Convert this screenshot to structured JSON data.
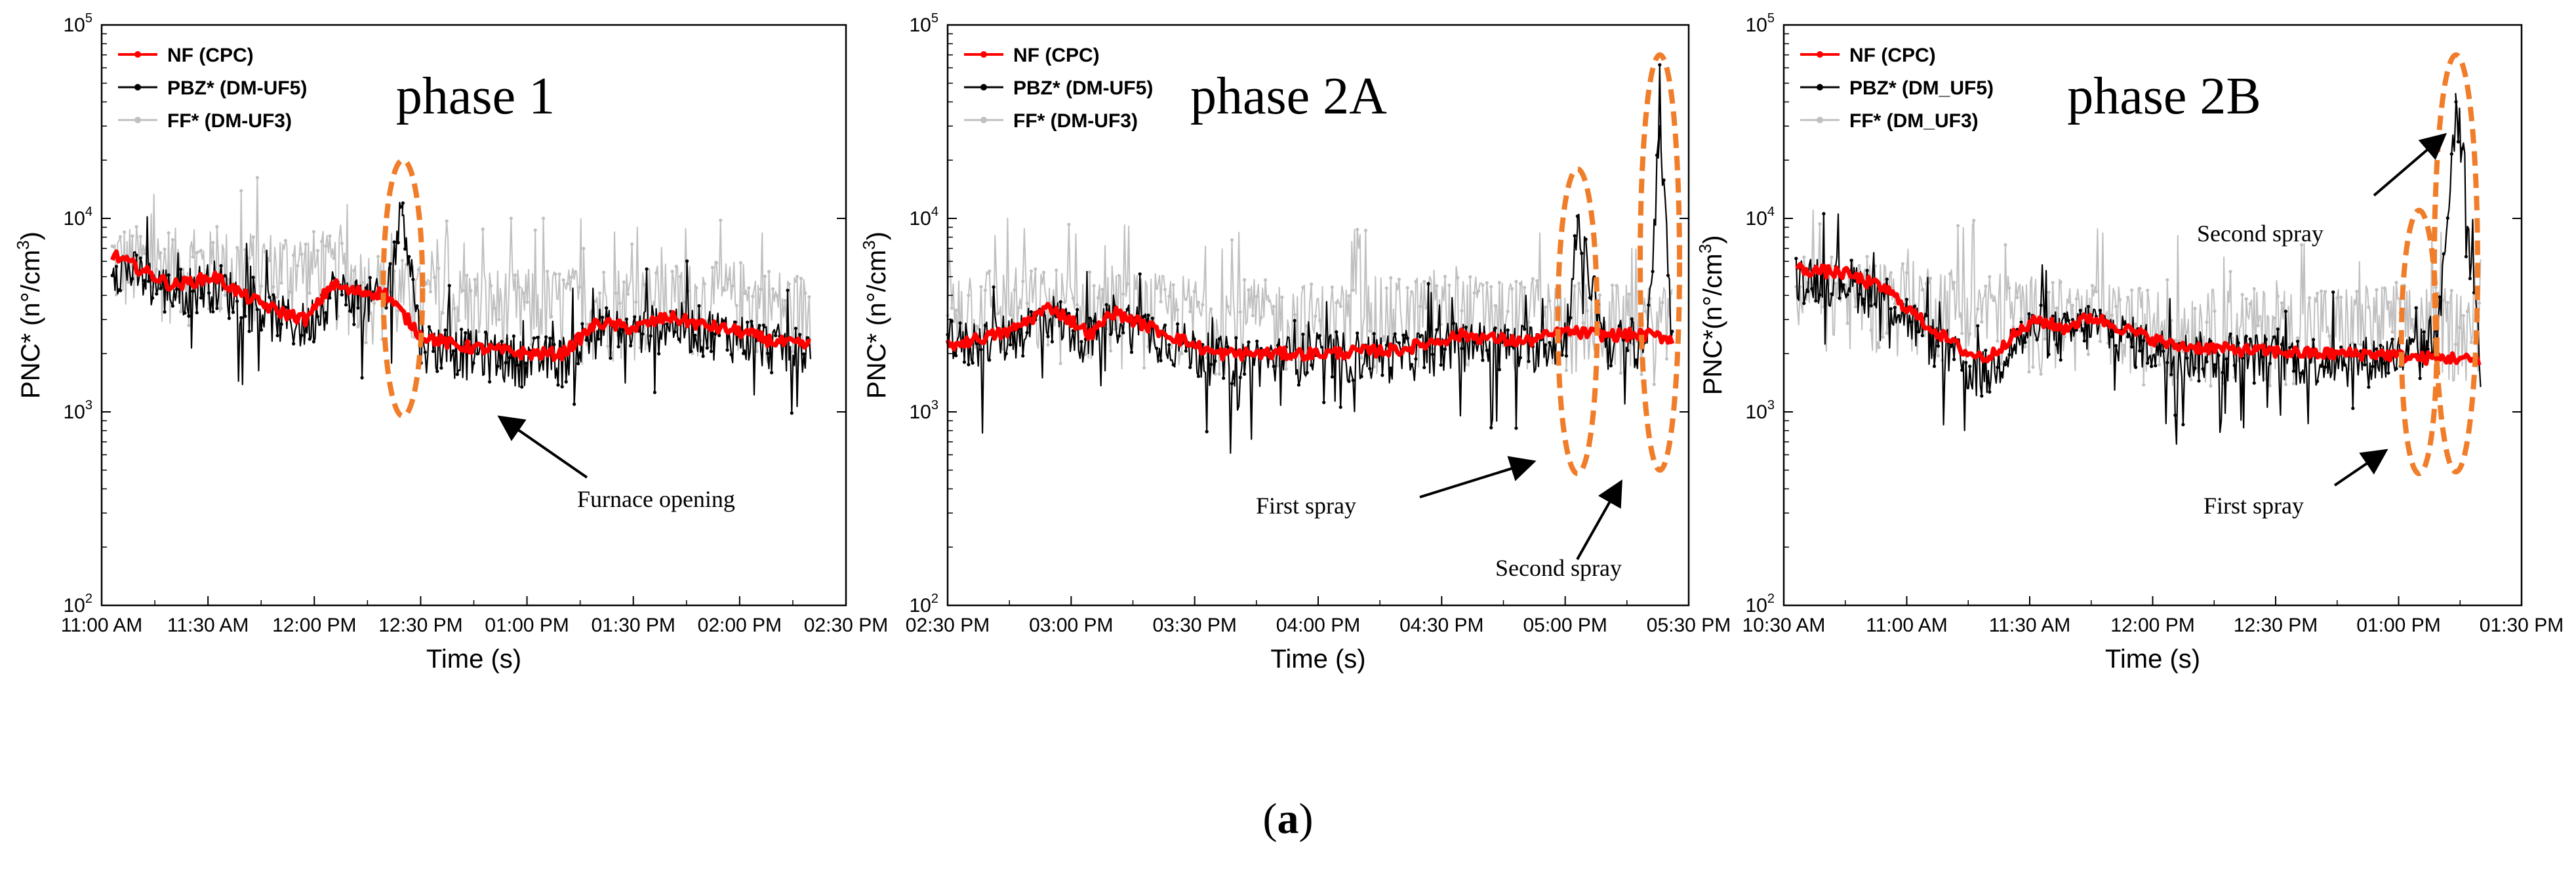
{
  "figure_caption": {
    "open": "(",
    "letter": "a",
    "close": ")"
  },
  "colors": {
    "nf": "#ff0000",
    "pbz": "#000000",
    "ff": "#c0c0c0",
    "ellipse": "#f07d2a",
    "axis": "#000000"
  },
  "chart_data": [
    {
      "type": "line",
      "title": "phase 1",
      "xlabel": "Time (s)",
      "ylabel": "PNC* (n°/cm3)",
      "yscale": "log",
      "ylim": [
        100,
        100000
      ],
      "y_ticks": [
        {
          "base": "10",
          "exp": "2",
          "value": 100
        },
        {
          "base": "10",
          "exp": "3",
          "value": 1000
        },
        {
          "base": "10",
          "exp": "4",
          "value": 10000
        },
        {
          "base": "10",
          "exp": "5",
          "value": 100000
        }
      ],
      "xlim": [
        "11:00 AM",
        "02:30 PM"
      ],
      "x_ticks": [
        "11:00 AM",
        "11:30 AM",
        "12:00 PM",
        "12:30 PM",
        "01:00 PM",
        "01:30 PM",
        "02:00 PM",
        "02:30 PM"
      ],
      "legend_position": "top-left",
      "series": [
        {
          "name": "NF (CPC)",
          "key": "nf",
          "x": [
            "11:03 AM",
            "11:20 AM",
            "11:32 AM",
            "11:40 AM",
            "11:50 AM",
            "11:58 AM",
            "12:05 PM",
            "12:10 PM",
            "12:20 PM",
            "12:30 PM",
            "12:40 PM",
            "12:50 PM",
            "01:00 PM",
            "01:10 PM",
            "01:20 PM",
            "01:30 PM",
            "01:40 PM",
            "01:50 PM",
            "02:00 PM",
            "02:10 PM",
            "02:20 PM"
          ],
          "y": [
            6500,
            4500,
            5000,
            4000,
            3300,
            3000,
            4600,
            4200,
            4100,
            2500,
            2200,
            2100,
            2000,
            2000,
            2900,
            2700,
            3100,
            2800,
            2600,
            2300,
            2200
          ]
        },
        {
          "name": "PBZ* (DM-UF5)",
          "key": "pbz",
          "x": [
            "11:03 AM",
            "11:20 AM",
            "11:32 AM",
            "11:40 AM",
            "11:50 AM",
            "11:58 AM",
            "12:05 PM",
            "12:10 PM",
            "12:20 PM",
            "12:25 PM",
            "12:30 PM",
            "12:40 PM",
            "12:50 PM",
            "01:00 PM",
            "01:10 PM",
            "01:20 PM",
            "01:30 PM",
            "01:40 PM",
            "01:50 PM",
            "02:00 PM",
            "02:10 PM",
            "02:20 PM"
          ],
          "y": [
            6000,
            4200,
            4700,
            3800,
            3100,
            2800,
            4300,
            4000,
            3700,
            12000,
            2300,
            2100,
            2000,
            1900,
            1900,
            2700,
            2600,
            2900,
            2700,
            2500,
            2200,
            2100
          ]
        },
        {
          "name": "FF* (DM-UF3)",
          "key": "ff",
          "x": [
            "11:03 AM",
            "11:30 AM",
            "12:00 PM",
            "12:30 PM",
            "01:00 PM",
            "01:30 PM",
            "02:00 PM",
            "02:20 PM"
          ],
          "y": [
            6500,
            6000,
            6000,
            4000,
            3800,
            4000,
            4200,
            3500
          ]
        }
      ],
      "annotations": [
        {
          "text": "Furnace opening",
          "target": "12:25 PM"
        }
      ]
    },
    {
      "type": "line",
      "title": "phase 2A",
      "xlabel": "Time (s)",
      "ylabel": "PNC* (n°/cm3)",
      "yscale": "log",
      "ylim": [
        100,
        100000
      ],
      "y_ticks": [
        {
          "base": "10",
          "exp": "2",
          "value": 100
        },
        {
          "base": "10",
          "exp": "3",
          "value": 1000
        },
        {
          "base": "10",
          "exp": "4",
          "value": 10000
        },
        {
          "base": "10",
          "exp": "5",
          "value": 100000
        }
      ],
      "xlim": [
        "02:30 PM",
        "05:30 PM"
      ],
      "x_ticks": [
        "02:30 PM",
        "03:00 PM",
        "03:30 PM",
        "04:00 PM",
        "04:30 PM",
        "05:00 PM",
        "05:30 PM"
      ],
      "legend_position": "top-left",
      "series": [
        {
          "name": "NF (CPC)",
          "key": "nf",
          "x": [
            "02:30 PM",
            "02:45 PM",
            "02:55 PM",
            "03:05 PM",
            "03:10 PM",
            "03:20 PM",
            "03:35 PM",
            "03:50 PM",
            "04:00 PM",
            "04:20 PM",
            "04:35 PM",
            "04:50 PM",
            "05:00 PM",
            "05:10 PM",
            "05:20 PM",
            "05:26 PM"
          ],
          "y": [
            2200,
            2600,
            3500,
            2500,
            3300,
            2700,
            2000,
            2000,
            2000,
            2100,
            2500,
            2300,
            2600,
            2500,
            2500,
            2400
          ]
        },
        {
          "name": "PBZ* (DM-UF5)",
          "key": "pbz",
          "x": [
            "02:30 PM",
            "02:45 PM",
            "02:55 PM",
            "03:05 PM",
            "03:10 PM",
            "03:20 PM",
            "03:35 PM",
            "03:50 PM",
            "04:00 PM",
            "04:20 PM",
            "04:35 PM",
            "04:50 PM",
            "05:00 PM",
            "05:03 PM",
            "05:10 PM",
            "05:20 PM",
            "05:23 PM",
            "05:26 PM"
          ],
          "y": [
            2200,
            2500,
            3200,
            2400,
            3200,
            2600,
            1900,
            1900,
            2000,
            2000,
            2300,
            2200,
            2400,
            9000,
            2300,
            2400,
            30000,
            2300
          ]
        },
        {
          "name": "FF* (DM-UF3)",
          "key": "ff",
          "x": [
            "02:30 PM",
            "03:00 PM",
            "03:30 PM",
            "04:00 PM",
            "04:30 PM",
            "05:00 PM",
            "05:26 PM"
          ],
          "y": [
            4000,
            3800,
            3500,
            3200,
            3600,
            3300,
            3000
          ]
        }
      ],
      "annotations": [
        {
          "text": "First spray",
          "target": "05:03 PM"
        },
        {
          "text": "Second spray",
          "target": "05:23 PM"
        }
      ]
    },
    {
      "type": "line",
      "title": "phase 2B",
      "xlabel": "Time (s)",
      "ylabel": "PNC*(n°/cm3)",
      "yscale": "log",
      "ylim": [
        100,
        100000
      ],
      "y_ticks": [
        {
          "base": "10",
          "exp": "2",
          "value": 100
        },
        {
          "base": "10",
          "exp": "3",
          "value": 1000
        },
        {
          "base": "10",
          "exp": "4",
          "value": 10000
        },
        {
          "base": "10",
          "exp": "5",
          "value": 100000
        }
      ],
      "xlim": [
        "10:30 AM",
        "01:30 PM"
      ],
      "x_ticks": [
        "10:30 AM",
        "11:00 AM",
        "11:30 AM",
        "12:00 PM",
        "12:30 PM",
        "01:00 PM",
        "01:30 PM"
      ],
      "legend_position": "top-left",
      "series": [
        {
          "name": "NF (CPC)",
          "key": "nf",
          "x": [
            "10:33 AM",
            "10:45 AM",
            "10:55 AM",
            "11:05 AM",
            "11:15 AM",
            "11:20 AM",
            "11:25 AM",
            "11:32 AM",
            "11:38 AM",
            "11:45 AM",
            "11:55 AM",
            "12:05 PM",
            "12:20 PM",
            "12:40 PM",
            "12:55 PM",
            "01:05 PM",
            "01:15 PM",
            "01:20 PM"
          ],
          "y": [
            5500,
            5200,
            4300,
            2800,
            2000,
            1900,
            2400,
            3000,
            2700,
            3100,
            2600,
            2200,
            2100,
            2000,
            2000,
            1900,
            1900,
            1800
          ]
        },
        {
          "name": "PBZ* (DM_UF5)",
          "key": "pbz",
          "x": [
            "10:33 AM",
            "10:45 AM",
            "10:55 AM",
            "11:05 AM",
            "11:15 AM",
            "11:20 AM",
            "11:25 AM",
            "11:32 AM",
            "11:38 AM",
            "11:45 AM",
            "11:55 AM",
            "12:05 PM",
            "12:20 PM",
            "12:40 PM",
            "12:55 PM",
            "01:05 PM",
            "01:10 PM",
            "01:14 PM",
            "01:20 PM"
          ],
          "y": [
            5200,
            4900,
            4000,
            2500,
            1700,
            1600,
            2200,
            2800,
            2500,
            2900,
            2400,
            2000,
            2000,
            1900,
            1900,
            2000,
            3000,
            40000,
            1800
          ]
        },
        {
          "name": "FF* (DM_UF3)",
          "key": "ff",
          "x": [
            "10:33 AM",
            "11:00 AM",
            "11:30 AM",
            "12:00 PM",
            "12:30 PM",
            "01:00 PM",
            "01:20 PM"
          ],
          "y": [
            4500,
            4200,
            3500,
            3000,
            3000,
            3200,
            3000
          ]
        }
      ],
      "annotations": [
        {
          "text": "First spray",
          "target": "01:05 PM"
        },
        {
          "text": "Second spray",
          "target": "01:14 PM"
        }
      ]
    }
  ]
}
